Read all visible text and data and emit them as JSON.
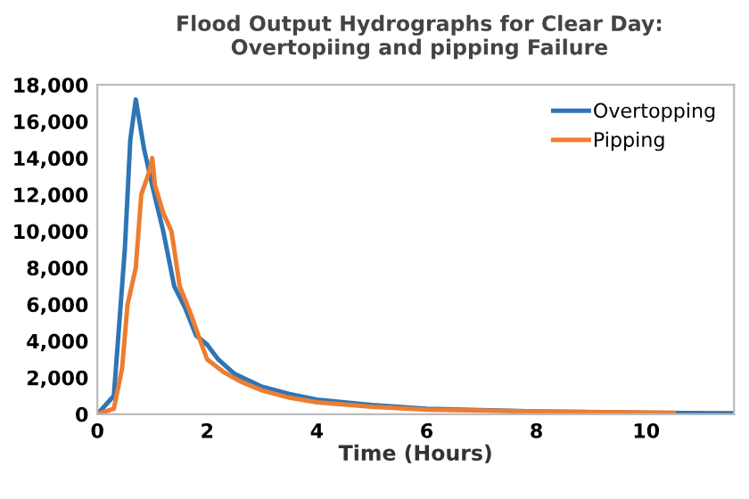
{
  "chart_data": {
    "type": "line",
    "title": "Flood Output Hydrographs for Clear Day:\nOvertopiing and pipping Failure",
    "xlabel": "Time (Hours)",
    "xlim": [
      0,
      11.6
    ],
    "xticks": [
      0,
      2,
      4,
      6,
      8,
      10
    ],
    "ylim": [
      0,
      18000
    ],
    "yticks": [
      {
        "value": 0,
        "label": "0"
      },
      {
        "value": 2000,
        "label": "2,000"
      },
      {
        "value": 4000,
        "label": "4,000"
      },
      {
        "value": 6000,
        "label": "6,000"
      },
      {
        "value": 8000,
        "label": "8,000"
      },
      {
        "value": 10000,
        "label": "10,000"
      },
      {
        "value": 12000,
        "label": "12,000"
      },
      {
        "value": 14000,
        "label": "14,000"
      },
      {
        "value": 16000,
        "label": "16,000"
      },
      {
        "value": 18000,
        "label": "18,000"
      }
    ],
    "grid": false,
    "legend": "top right",
    "marker": "none",
    "line_style": "solid",
    "series": [
      {
        "name": "Overtopping",
        "color": "#2e75b6",
        "x": [
          0,
          0.3,
          0.5,
          0.6,
          0.7,
          0.85,
          1.0,
          1.2,
          1.4,
          1.6,
          1.8,
          2.0,
          2.2,
          2.5,
          3,
          3.5,
          4,
          5,
          6,
          8,
          10,
          11.6
        ],
        "values": [
          0,
          1000,
          9000,
          15000,
          17200,
          14500,
          12500,
          10000,
          7000,
          5800,
          4300,
          3800,
          3000,
          2200,
          1500,
          1100,
          800,
          500,
          300,
          150,
          80,
          50
        ]
      },
      {
        "name": "Pipping",
        "color": "#ed7d31",
        "x": [
          0,
          0.3,
          0.45,
          0.55,
          0.7,
          0.8,
          0.95,
          1.0,
          1.05,
          1.2,
          1.35,
          1.5,
          1.7,
          1.9,
          2.0,
          2.3,
          2.6,
          3,
          3.5,
          4,
          5,
          6,
          8,
          10.5
        ],
        "values": [
          0,
          300,
          2500,
          6000,
          8000,
          12000,
          13300,
          14000,
          12500,
          11000,
          10000,
          7000,
          5500,
          3800,
          3000,
          2300,
          1800,
          1300,
          900,
          650,
          400,
          250,
          150,
          80
        ]
      }
    ]
  }
}
